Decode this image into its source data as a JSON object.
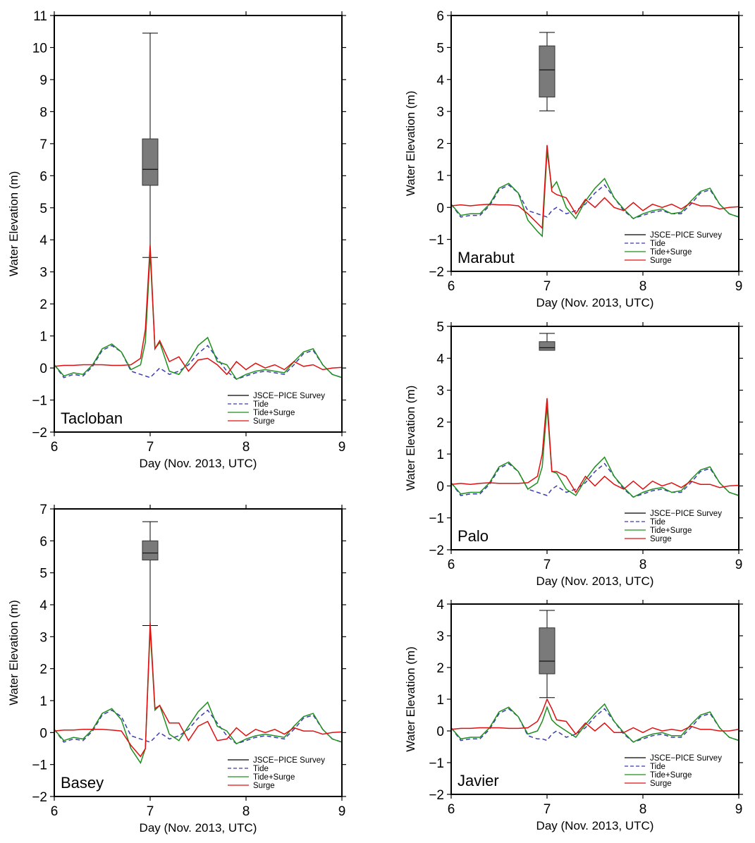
{
  "figure": {
    "series_names": [
      "JSCE−PICE Survey",
      "Tide",
      "Tide+Surge",
      "Surge"
    ],
    "colors": {
      "survey": "#000000",
      "tide": "#3b3bb3",
      "tide_surge": "#1f8f1f",
      "surge": "#e01010",
      "box_fill": "#7a7a7a"
    }
  },
  "chart_data": [
    {
      "type": "line",
      "name": "Tacloban",
      "xlabel": "Day (Nov. 2013, UTC)",
      "ylabel": "Water Elevation (m)",
      "xlim": [
        6,
        9
      ],
      "ylim": [
        -2,
        11
      ],
      "xticks": [
        "6",
        "7",
        "8",
        "9"
      ],
      "yticks": [
        "−2",
        "−1",
        "0",
        "1",
        "2",
        "3",
        "4",
        "5",
        "6",
        "7",
        "8",
        "9",
        "10",
        "11"
      ],
      "legend": "bottom-right",
      "box": {
        "x": 7.0,
        "min": 3.45,
        "q1": 5.7,
        "median": 6.2,
        "q3": 7.15,
        "max": 10.45
      },
      "x": [
        6.0,
        6.1,
        6.2,
        6.3,
        6.4,
        6.5,
        6.6,
        6.7,
        6.8,
        6.9,
        6.95,
        7.0,
        7.05,
        7.1,
        7.2,
        7.3,
        7.4,
        7.5,
        7.6,
        7.7,
        7.8,
        7.9,
        8.0,
        8.1,
        8.2,
        8.3,
        8.4,
        8.5,
        8.6,
        8.7,
        8.8,
        8.9,
        9.0
      ],
      "series": [
        {
          "name": "Tide",
          "values": [
            0.1,
            -0.3,
            -0.2,
            -0.25,
            0.05,
            0.55,
            0.7,
            0.5,
            -0.1,
            -0.2,
            -0.25,
            -0.3,
            -0.15,
            0.0,
            -0.2,
            -0.1,
            0.1,
            0.45,
            0.7,
            0.3,
            -0.1,
            -0.35,
            -0.25,
            -0.15,
            -0.1,
            -0.15,
            -0.2,
            0.1,
            0.45,
            0.55,
            0.1,
            -0.2,
            -0.3
          ]
        },
        {
          "name": "Tide+Surge",
          "values": [
            0.1,
            -0.25,
            -0.15,
            -0.2,
            0.1,
            0.6,
            0.75,
            0.5,
            -0.05,
            0.1,
            0.8,
            3.6,
            0.6,
            0.8,
            -0.1,
            -0.2,
            0.2,
            0.7,
            0.95,
            0.2,
            0.1,
            -0.35,
            -0.2,
            -0.1,
            -0.05,
            -0.1,
            -0.15,
            0.2,
            0.5,
            0.6,
            0.1,
            -0.2,
            -0.3
          ]
        },
        {
          "name": "Surge",
          "values": [
            0.05,
            0.08,
            0.08,
            0.1,
            0.1,
            0.1,
            0.08,
            0.08,
            0.1,
            0.3,
            1.2,
            3.85,
            0.6,
            0.85,
            0.2,
            0.35,
            -0.1,
            0.25,
            0.3,
            0.1,
            -0.2,
            0.2,
            -0.05,
            0.15,
            0.0,
            0.1,
            -0.05,
            0.2,
            0.05,
            0.1,
            -0.05,
            0.0,
            0.02
          ]
        }
      ]
    },
    {
      "type": "line",
      "name": "Basey",
      "xlabel": "Day (Nov. 2013, UTC)",
      "ylabel": "Water Elevation (m)",
      "xlim": [
        6,
        9
      ],
      "ylim": [
        -2,
        7
      ],
      "xticks": [
        "6",
        "7",
        "8",
        "9"
      ],
      "yticks": [
        "−2",
        "−1",
        "0",
        "1",
        "2",
        "3",
        "4",
        "5",
        "6",
        "7"
      ],
      "legend": "bottom-right",
      "box": {
        "x": 7.0,
        "min": 3.35,
        "q1": 5.4,
        "median": 5.62,
        "q3": 6.0,
        "max": 6.6
      },
      "x": [
        6.0,
        6.1,
        6.2,
        6.3,
        6.4,
        6.5,
        6.6,
        6.7,
        6.8,
        6.9,
        6.95,
        7.0,
        7.05,
        7.1,
        7.2,
        7.3,
        7.4,
        7.5,
        7.6,
        7.7,
        7.8,
        7.9,
        8.0,
        8.1,
        8.2,
        8.3,
        8.4,
        8.5,
        8.6,
        8.7,
        8.8,
        8.9,
        9.0
      ],
      "series": [
        {
          "name": "Tide",
          "values": [
            0.1,
            -0.3,
            -0.2,
            -0.25,
            0.05,
            0.55,
            0.7,
            0.5,
            -0.1,
            -0.2,
            -0.25,
            -0.3,
            -0.15,
            0.0,
            -0.2,
            -0.1,
            0.1,
            0.45,
            0.7,
            0.3,
            -0.1,
            -0.35,
            -0.25,
            -0.15,
            -0.1,
            -0.15,
            -0.2,
            0.1,
            0.45,
            0.55,
            0.1,
            -0.2,
            -0.3
          ]
        },
        {
          "name": "Tide+Surge",
          "values": [
            0.1,
            -0.25,
            -0.15,
            -0.2,
            0.1,
            0.6,
            0.75,
            0.4,
            -0.5,
            -0.95,
            -0.5,
            3.25,
            0.7,
            0.85,
            -0.05,
            -0.25,
            0.2,
            0.65,
            0.95,
            0.2,
            0.05,
            -0.35,
            -0.2,
            -0.1,
            -0.05,
            -0.1,
            -0.15,
            0.2,
            0.5,
            0.6,
            0.1,
            -0.2,
            -0.3
          ]
        },
        {
          "name": "Surge",
          "values": [
            0.05,
            0.08,
            0.08,
            0.1,
            0.1,
            0.1,
            0.08,
            0.05,
            -0.4,
            -0.75,
            -0.5,
            3.45,
            0.75,
            0.85,
            0.3,
            0.3,
            -0.25,
            0.2,
            0.35,
            -0.25,
            -0.2,
            0.15,
            -0.1,
            0.1,
            0.0,
            0.1,
            -0.05,
            0.15,
            0.05,
            0.05,
            -0.05,
            0.0,
            0.02
          ]
        }
      ]
    },
    {
      "type": "line",
      "name": "Marabut",
      "xlabel": "Day (Nov. 2013, UTC)",
      "ylabel": "Water Elevation (m)",
      "xlim": [
        6,
        9
      ],
      "ylim": [
        -2,
        6
      ],
      "xticks": [
        "6",
        "7",
        "8",
        "9"
      ],
      "yticks": [
        "−2",
        "−1",
        "0",
        "1",
        "2",
        "3",
        "4",
        "5",
        "6"
      ],
      "legend": "bottom-right",
      "box": {
        "x": 7.0,
        "min": 3.02,
        "q1": 3.45,
        "median": 4.3,
        "q3": 5.05,
        "max": 5.47
      },
      "x": [
        6.0,
        6.1,
        6.2,
        6.3,
        6.4,
        6.5,
        6.6,
        6.7,
        6.8,
        6.9,
        6.95,
        7.0,
        7.05,
        7.1,
        7.2,
        7.3,
        7.4,
        7.5,
        7.6,
        7.7,
        7.8,
        7.9,
        8.0,
        8.1,
        8.2,
        8.3,
        8.4,
        8.5,
        8.6,
        8.7,
        8.8,
        8.9,
        9.0
      ],
      "series": [
        {
          "name": "Tide",
          "values": [
            0.1,
            -0.3,
            -0.25,
            -0.25,
            0.05,
            0.55,
            0.7,
            0.45,
            -0.1,
            -0.2,
            -0.25,
            -0.3,
            -0.1,
            0.0,
            -0.2,
            -0.1,
            0.1,
            0.45,
            0.7,
            0.3,
            -0.1,
            -0.35,
            -0.25,
            -0.15,
            -0.1,
            -0.2,
            -0.2,
            0.1,
            0.45,
            0.55,
            0.1,
            -0.2,
            -0.3
          ]
        },
        {
          "name": "Tide+Surge",
          "values": [
            0.1,
            -0.25,
            -0.2,
            -0.2,
            0.1,
            0.6,
            0.75,
            0.45,
            -0.4,
            -0.75,
            -0.9,
            1.75,
            0.6,
            0.8,
            0.0,
            -0.35,
            0.2,
            0.6,
            0.9,
            0.3,
            -0.05,
            -0.35,
            -0.2,
            -0.1,
            -0.05,
            -0.2,
            -0.15,
            0.2,
            0.5,
            0.6,
            0.1,
            -0.2,
            -0.3
          ]
        },
        {
          "name": "Surge",
          "values": [
            0.05,
            0.08,
            0.05,
            0.08,
            0.1,
            0.08,
            0.08,
            0.05,
            -0.2,
            -0.5,
            -0.65,
            1.95,
            0.5,
            0.4,
            0.3,
            -0.2,
            0.25,
            0.0,
            0.3,
            0.0,
            -0.1,
            0.15,
            -0.1,
            0.1,
            0.0,
            0.1,
            -0.05,
            0.15,
            0.05,
            0.05,
            -0.05,
            0.0,
            0.02
          ]
        }
      ]
    },
    {
      "type": "line",
      "name": "Palo",
      "xlabel": "Day (Nov. 2013, UTC)",
      "ylabel": "Water Elevation (m)",
      "xlim": [
        6,
        9
      ],
      "ylim": [
        -2,
        5
      ],
      "xticks": [
        "6",
        "7",
        "8",
        "9"
      ],
      "yticks": [
        "−2",
        "−1",
        "0",
        "1",
        "2",
        "3",
        "4",
        "5"
      ],
      "legend": "bottom-right",
      "box": {
        "x": 7.0,
        "min": 4.25,
        "q1": 4.25,
        "median": 4.33,
        "q3": 4.52,
        "max": 4.78
      },
      "x": [
        6.0,
        6.1,
        6.2,
        6.3,
        6.4,
        6.5,
        6.6,
        6.7,
        6.8,
        6.9,
        6.95,
        7.0,
        7.05,
        7.1,
        7.2,
        7.3,
        7.4,
        7.5,
        7.6,
        7.7,
        7.8,
        7.9,
        8.0,
        8.1,
        8.2,
        8.3,
        8.4,
        8.5,
        8.6,
        8.7,
        8.8,
        8.9,
        9.0
      ],
      "series": [
        {
          "name": "Tide",
          "values": [
            0.1,
            -0.3,
            -0.25,
            -0.25,
            0.05,
            0.55,
            0.7,
            0.45,
            -0.1,
            -0.2,
            -0.25,
            -0.3,
            -0.1,
            0.0,
            -0.2,
            -0.1,
            0.1,
            0.45,
            0.7,
            0.3,
            -0.1,
            -0.35,
            -0.25,
            -0.15,
            -0.1,
            -0.2,
            -0.2,
            0.1,
            0.45,
            0.55,
            0.1,
            -0.2,
            -0.3
          ]
        },
        {
          "name": "Tide+Surge",
          "values": [
            0.1,
            -0.25,
            -0.2,
            -0.2,
            0.1,
            0.6,
            0.75,
            0.45,
            -0.1,
            0.1,
            0.6,
            2.5,
            0.45,
            0.4,
            -0.1,
            -0.3,
            0.2,
            0.6,
            0.9,
            0.3,
            -0.05,
            -0.35,
            -0.2,
            -0.1,
            -0.05,
            -0.2,
            -0.15,
            0.2,
            0.5,
            0.6,
            0.1,
            -0.2,
            -0.3
          ]
        },
        {
          "name": "Surge",
          "values": [
            0.05,
            0.08,
            0.05,
            0.08,
            0.1,
            0.08,
            0.08,
            0.08,
            0.1,
            0.3,
            1.0,
            2.75,
            0.45,
            0.45,
            0.3,
            -0.2,
            0.3,
            0.0,
            0.3,
            0.05,
            -0.1,
            0.15,
            -0.1,
            0.15,
            0.0,
            0.1,
            -0.05,
            0.15,
            0.05,
            0.05,
            -0.05,
            0.0,
            0.02
          ]
        }
      ]
    },
    {
      "type": "line",
      "name": "Javier",
      "xlabel": "Day (Nov. 2013, UTC)",
      "ylabel": "Water Elevation (m)",
      "xlim": [
        6,
        9
      ],
      "ylim": [
        -2,
        4
      ],
      "xticks": [
        "6",
        "7",
        "8",
        "9"
      ],
      "yticks": [
        "−2",
        "−1",
        "0",
        "1",
        "2",
        "3",
        "4"
      ],
      "legend": "bottom-right",
      "box": {
        "x": 7.0,
        "min": 1.05,
        "q1": 1.8,
        "median": 2.2,
        "q3": 3.25,
        "max": 3.8
      },
      "x": [
        6.0,
        6.1,
        6.2,
        6.3,
        6.4,
        6.5,
        6.6,
        6.7,
        6.8,
        6.9,
        6.95,
        7.0,
        7.05,
        7.1,
        7.2,
        7.3,
        7.4,
        7.5,
        7.6,
        7.7,
        7.8,
        7.9,
        8.0,
        8.1,
        8.2,
        8.3,
        8.4,
        8.5,
        8.6,
        8.7,
        8.8,
        8.9,
        9.0
      ],
      "series": [
        {
          "name": "Tide",
          "values": [
            0.1,
            -0.3,
            -0.25,
            -0.25,
            0.05,
            0.55,
            0.7,
            0.45,
            -0.15,
            -0.25,
            -0.25,
            -0.3,
            -0.1,
            0.0,
            -0.2,
            -0.1,
            0.1,
            0.45,
            0.7,
            0.3,
            -0.1,
            -0.35,
            -0.25,
            -0.15,
            -0.1,
            -0.2,
            -0.2,
            0.1,
            0.45,
            0.55,
            0.1,
            -0.2,
            -0.3
          ]
        },
        {
          "name": "Tide+Surge",
          "values": [
            0.1,
            -0.25,
            -0.2,
            -0.2,
            0.1,
            0.6,
            0.75,
            0.45,
            -0.1,
            0.0,
            0.3,
            0.75,
            0.35,
            0.2,
            0.0,
            -0.2,
            0.2,
            0.55,
            0.85,
            0.3,
            -0.05,
            -0.35,
            -0.2,
            -0.1,
            -0.05,
            -0.15,
            -0.15,
            0.2,
            0.5,
            0.6,
            0.1,
            -0.2,
            -0.3
          ]
        },
        {
          "name": "Surge",
          "values": [
            0.05,
            0.08,
            0.08,
            0.1,
            0.1,
            0.1,
            0.08,
            0.08,
            0.1,
            0.3,
            0.6,
            1.0,
            0.7,
            0.35,
            0.3,
            -0.1,
            0.25,
            0.0,
            0.25,
            -0.05,
            -0.05,
            0.1,
            -0.05,
            0.1,
            0.0,
            0.05,
            0.0,
            0.15,
            0.05,
            0.05,
            0.0,
            0.0,
            0.05
          ]
        }
      ]
    }
  ]
}
